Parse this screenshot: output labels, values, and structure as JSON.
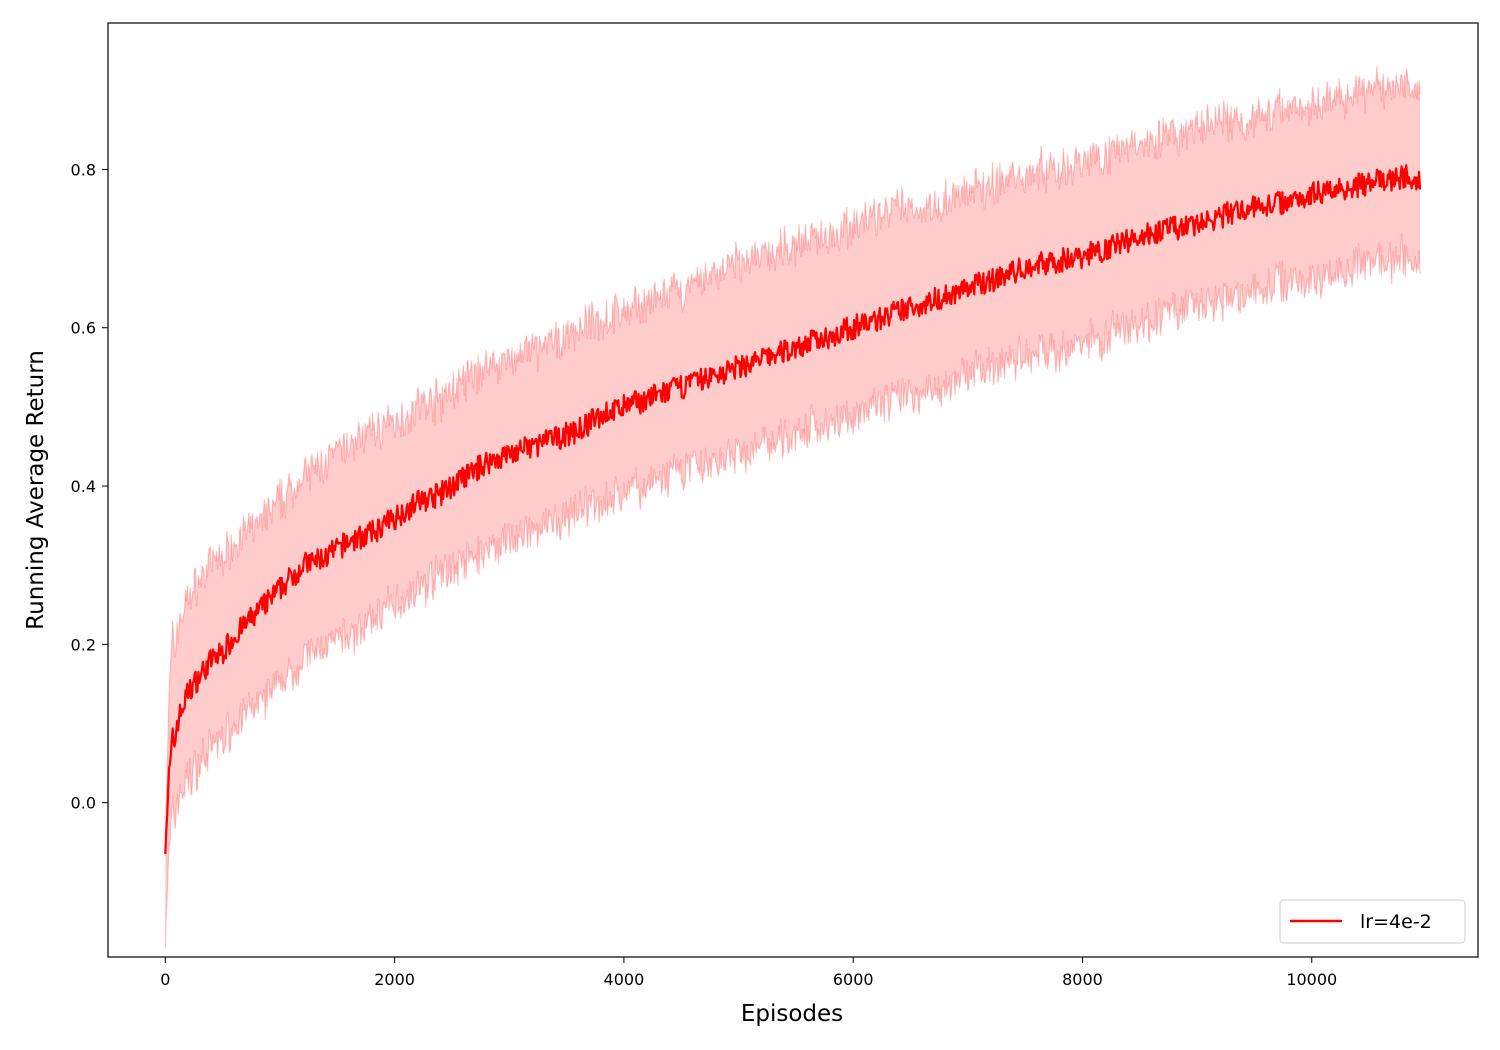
{
  "chart_data": {
    "type": "line",
    "xlabel": "Episodes",
    "ylabel": "Running Average Return",
    "xlim": [
      -500,
      11450
    ],
    "ylim": [
      -0.195,
      0.985
    ],
    "xticks": [
      0,
      2000,
      4000,
      6000,
      8000,
      10000
    ],
    "yticks": [
      0.0,
      0.2,
      0.4,
      0.6,
      0.8
    ],
    "ytick_labels": [
      "0.0",
      "0.2",
      "0.4",
      "0.6",
      "0.8"
    ],
    "legend": {
      "position": "lower-right",
      "entries": [
        "lr=4e-2"
      ]
    },
    "grid": false,
    "series": [
      {
        "name": "lr=4e-2",
        "color": "#ff0000",
        "band_color": "#ff0000",
        "band_opacity": 0.2,
        "x": [
          0,
          50,
          100,
          200,
          300,
          400,
          500,
          600,
          800,
          1000,
          1200,
          1400,
          1600,
          1800,
          2000,
          2200,
          2400,
          2600,
          2800,
          3000,
          3200,
          3400,
          3600,
          3800,
          4000,
          4200,
          4400,
          4600,
          4800,
          5000,
          5200,
          5400,
          5600,
          5800,
          6000,
          6200,
          6400,
          6600,
          6800,
          7000,
          7200,
          7400,
          7600,
          7800,
          8000,
          8200,
          8400,
          8600,
          8800,
          9000,
          9200,
          9400,
          9600,
          9800,
          10000,
          10200,
          10400,
          10600,
          10800,
          10950
        ],
        "values": [
          -0.03,
          0.05,
          0.1,
          0.14,
          0.16,
          0.18,
          0.19,
          0.21,
          0.24,
          0.27,
          0.3,
          0.31,
          0.33,
          0.34,
          0.36,
          0.38,
          0.39,
          0.41,
          0.43,
          0.44,
          0.45,
          0.46,
          0.47,
          0.49,
          0.5,
          0.51,
          0.52,
          0.53,
          0.54,
          0.55,
          0.56,
          0.57,
          0.58,
          0.59,
          0.6,
          0.61,
          0.62,
          0.63,
          0.64,
          0.65,
          0.66,
          0.67,
          0.68,
          0.685,
          0.69,
          0.7,
          0.71,
          0.72,
          0.725,
          0.73,
          0.74,
          0.75,
          0.755,
          0.76,
          0.77,
          0.775,
          0.78,
          0.785,
          0.79,
          0.79
        ],
        "upper": [
          0.0,
          0.17,
          0.22,
          0.26,
          0.28,
          0.3,
          0.31,
          0.33,
          0.35,
          0.38,
          0.41,
          0.43,
          0.45,
          0.47,
          0.48,
          0.5,
          0.51,
          0.53,
          0.55,
          0.56,
          0.57,
          0.58,
          0.6,
          0.61,
          0.62,
          0.63,
          0.64,
          0.65,
          0.67,
          0.68,
          0.69,
          0.7,
          0.71,
          0.72,
          0.73,
          0.74,
          0.75,
          0.75,
          0.76,
          0.77,
          0.78,
          0.79,
          0.8,
          0.8,
          0.81,
          0.82,
          0.83,
          0.84,
          0.84,
          0.85,
          0.86,
          0.86,
          0.87,
          0.88,
          0.88,
          0.89,
          0.9,
          0.9,
          0.91,
          0.91
        ],
        "lower": [
          -0.13,
          -0.05,
          0.0,
          0.03,
          0.05,
          0.07,
          0.08,
          0.1,
          0.12,
          0.15,
          0.18,
          0.2,
          0.21,
          0.23,
          0.25,
          0.27,
          0.29,
          0.3,
          0.32,
          0.33,
          0.34,
          0.35,
          0.37,
          0.38,
          0.39,
          0.4,
          0.41,
          0.42,
          0.43,
          0.44,
          0.45,
          0.46,
          0.47,
          0.48,
          0.49,
          0.5,
          0.51,
          0.52,
          0.53,
          0.54,
          0.55,
          0.56,
          0.57,
          0.57,
          0.58,
          0.59,
          0.6,
          0.61,
          0.62,
          0.63,
          0.63,
          0.64,
          0.65,
          0.66,
          0.66,
          0.67,
          0.68,
          0.68,
          0.69,
          0.69
        ]
      }
    ]
  }
}
